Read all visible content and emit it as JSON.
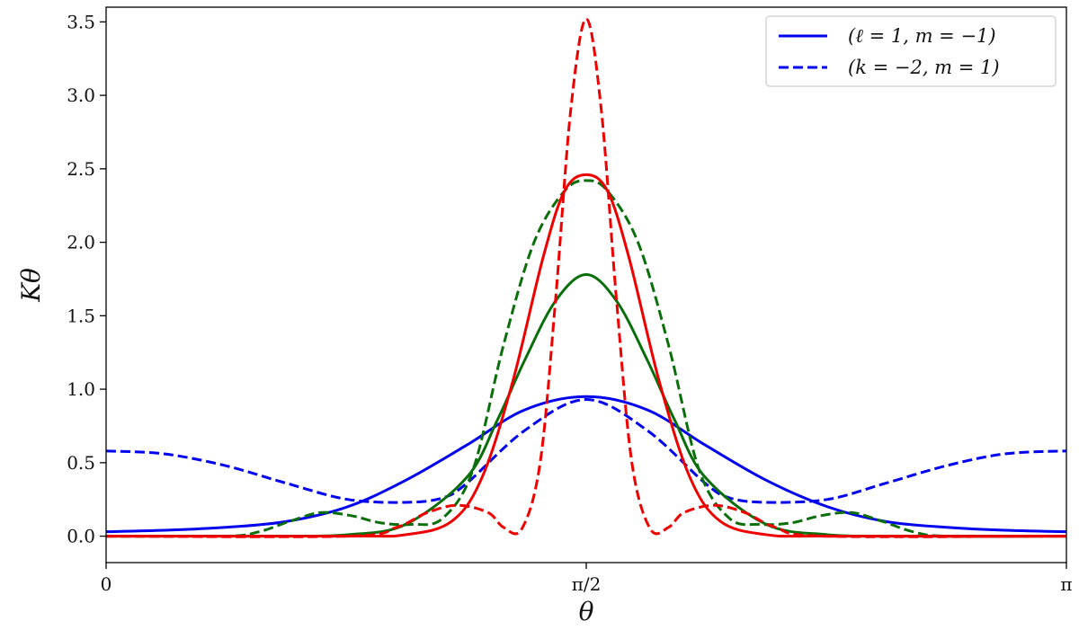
{
  "chart_data": {
    "type": "line",
    "title": "",
    "xlabel": "θ",
    "ylabel": "Kθ",
    "xlim": [
      0,
      3.14159
    ],
    "ylim": [
      -0.18,
      3.6
    ],
    "xticks": [
      {
        "value": 0,
        "label": "0"
      },
      {
        "value": 1.5708,
        "label": "π/2"
      },
      {
        "value": 3.14159,
        "label": "π"
      }
    ],
    "yticks": [
      {
        "value": 0.0,
        "label": "0.0"
      },
      {
        "value": 0.5,
        "label": "0.5"
      },
      {
        "value": 1.0,
        "label": "1.0"
      },
      {
        "value": 1.5,
        "label": "1.5"
      },
      {
        "value": 2.0,
        "label": "2.0"
      },
      {
        "value": 2.5,
        "label": "2.5"
      },
      {
        "value": 3.0,
        "label": "3.0"
      },
      {
        "value": 3.5,
        "label": "3.5"
      }
    ],
    "grid": false,
    "legend_position": "top-right",
    "legend": [
      {
        "label": "(ℓ = 1, m = −1)",
        "style": "solid",
        "color": "#0000ee"
      },
      {
        "label": "(k = −2, m = 1)",
        "style": "dashed",
        "color": "#0000ee"
      }
    ],
    "series": [
      {
        "color": "#0000ee",
        "style": "solid",
        "x": [
          0,
          0.19,
          0.39,
          0.59,
          0.79,
          0.98,
          1.18,
          1.37,
          1.5708,
          1.77,
          1.96,
          2.16,
          2.36,
          2.55,
          2.75,
          2.94,
          3.14159
        ],
        "y": [
          0.03,
          0.04,
          0.06,
          0.1,
          0.2,
          0.38,
          0.62,
          0.86,
          0.95,
          0.86,
          0.62,
          0.38,
          0.2,
          0.1,
          0.06,
          0.04,
          0.03
        ]
      },
      {
        "color": "#0000ee",
        "style": "dashed",
        "x": [
          0,
          0.19,
          0.39,
          0.59,
          0.79,
          0.98,
          1.1,
          1.18,
          1.37,
          1.5708,
          1.77,
          1.96,
          2.04,
          2.16,
          2.36,
          2.55,
          2.75,
          2.94,
          3.14159
        ],
        "y": [
          0.58,
          0.56,
          0.48,
          0.36,
          0.25,
          0.23,
          0.26,
          0.36,
          0.72,
          0.93,
          0.72,
          0.36,
          0.26,
          0.23,
          0.25,
          0.36,
          0.48,
          0.56,
          0.58
        ]
      },
      {
        "color": "#0a6e0a",
        "style": "solid",
        "x": [
          0,
          0.39,
          0.59,
          0.79,
          0.98,
          1.18,
          1.28,
          1.37,
          1.47,
          1.5708,
          1.67,
          1.77,
          1.86,
          1.96,
          2.16,
          2.36,
          2.55,
          2.75,
          3.14159
        ],
        "y": [
          0.0,
          0.0,
          0.0,
          0.01,
          0.08,
          0.4,
          0.79,
          1.2,
          1.6,
          1.78,
          1.6,
          1.2,
          0.79,
          0.4,
          0.08,
          0.01,
          0.0,
          0.0,
          0.0
        ]
      },
      {
        "color": "#0a6e0a",
        "style": "dashed",
        "x": [
          0,
          0.39,
          0.5,
          0.6,
          0.7,
          0.8,
          0.9,
          1.0,
          1.1,
          1.2,
          1.3,
          1.4,
          1.5,
          1.5708,
          1.64,
          1.74,
          1.84,
          1.94,
          2.04,
          2.14,
          2.24,
          2.34,
          2.44,
          2.54,
          2.64,
          2.75,
          3.14159
        ],
        "y": [
          0.0,
          0.0,
          0.03,
          0.1,
          0.16,
          0.14,
          0.09,
          0.08,
          0.12,
          0.45,
          1.3,
          2.0,
          2.35,
          2.42,
          2.35,
          2.0,
          1.3,
          0.45,
          0.12,
          0.08,
          0.09,
          0.14,
          0.16,
          0.1,
          0.03,
          0.0,
          0.0
        ]
      },
      {
        "color": "#ee0000",
        "style": "solid",
        "x": [
          0,
          0.79,
          0.98,
          1.13,
          1.23,
          1.33,
          1.43,
          1.5,
          1.5708,
          1.64,
          1.71,
          1.81,
          1.91,
          2.01,
          2.16,
          2.36,
          3.14159
        ],
        "y": [
          0.0,
          0.0,
          0.01,
          0.1,
          0.4,
          1.05,
          1.9,
          2.35,
          2.46,
          2.35,
          1.9,
          1.05,
          0.4,
          0.1,
          0.01,
          0.0,
          0.0
        ]
      },
      {
        "color": "#ee0000",
        "style": "dashed",
        "x": [
          0,
          0.79,
          0.95,
          1.05,
          1.15,
          1.25,
          1.3,
          1.36,
          1.42,
          1.47,
          1.52,
          1.5708,
          1.62,
          1.67,
          1.72,
          1.78,
          1.84,
          1.89,
          1.99,
          2.09,
          2.19,
          2.35,
          3.14159
        ],
        "y": [
          0.0,
          0.0,
          0.06,
          0.16,
          0.21,
          0.16,
          0.06,
          0.05,
          0.5,
          1.6,
          2.9,
          3.52,
          2.9,
          1.6,
          0.5,
          0.05,
          0.06,
          0.16,
          0.21,
          0.16,
          0.06,
          0.0,
          0.0
        ]
      }
    ]
  }
}
